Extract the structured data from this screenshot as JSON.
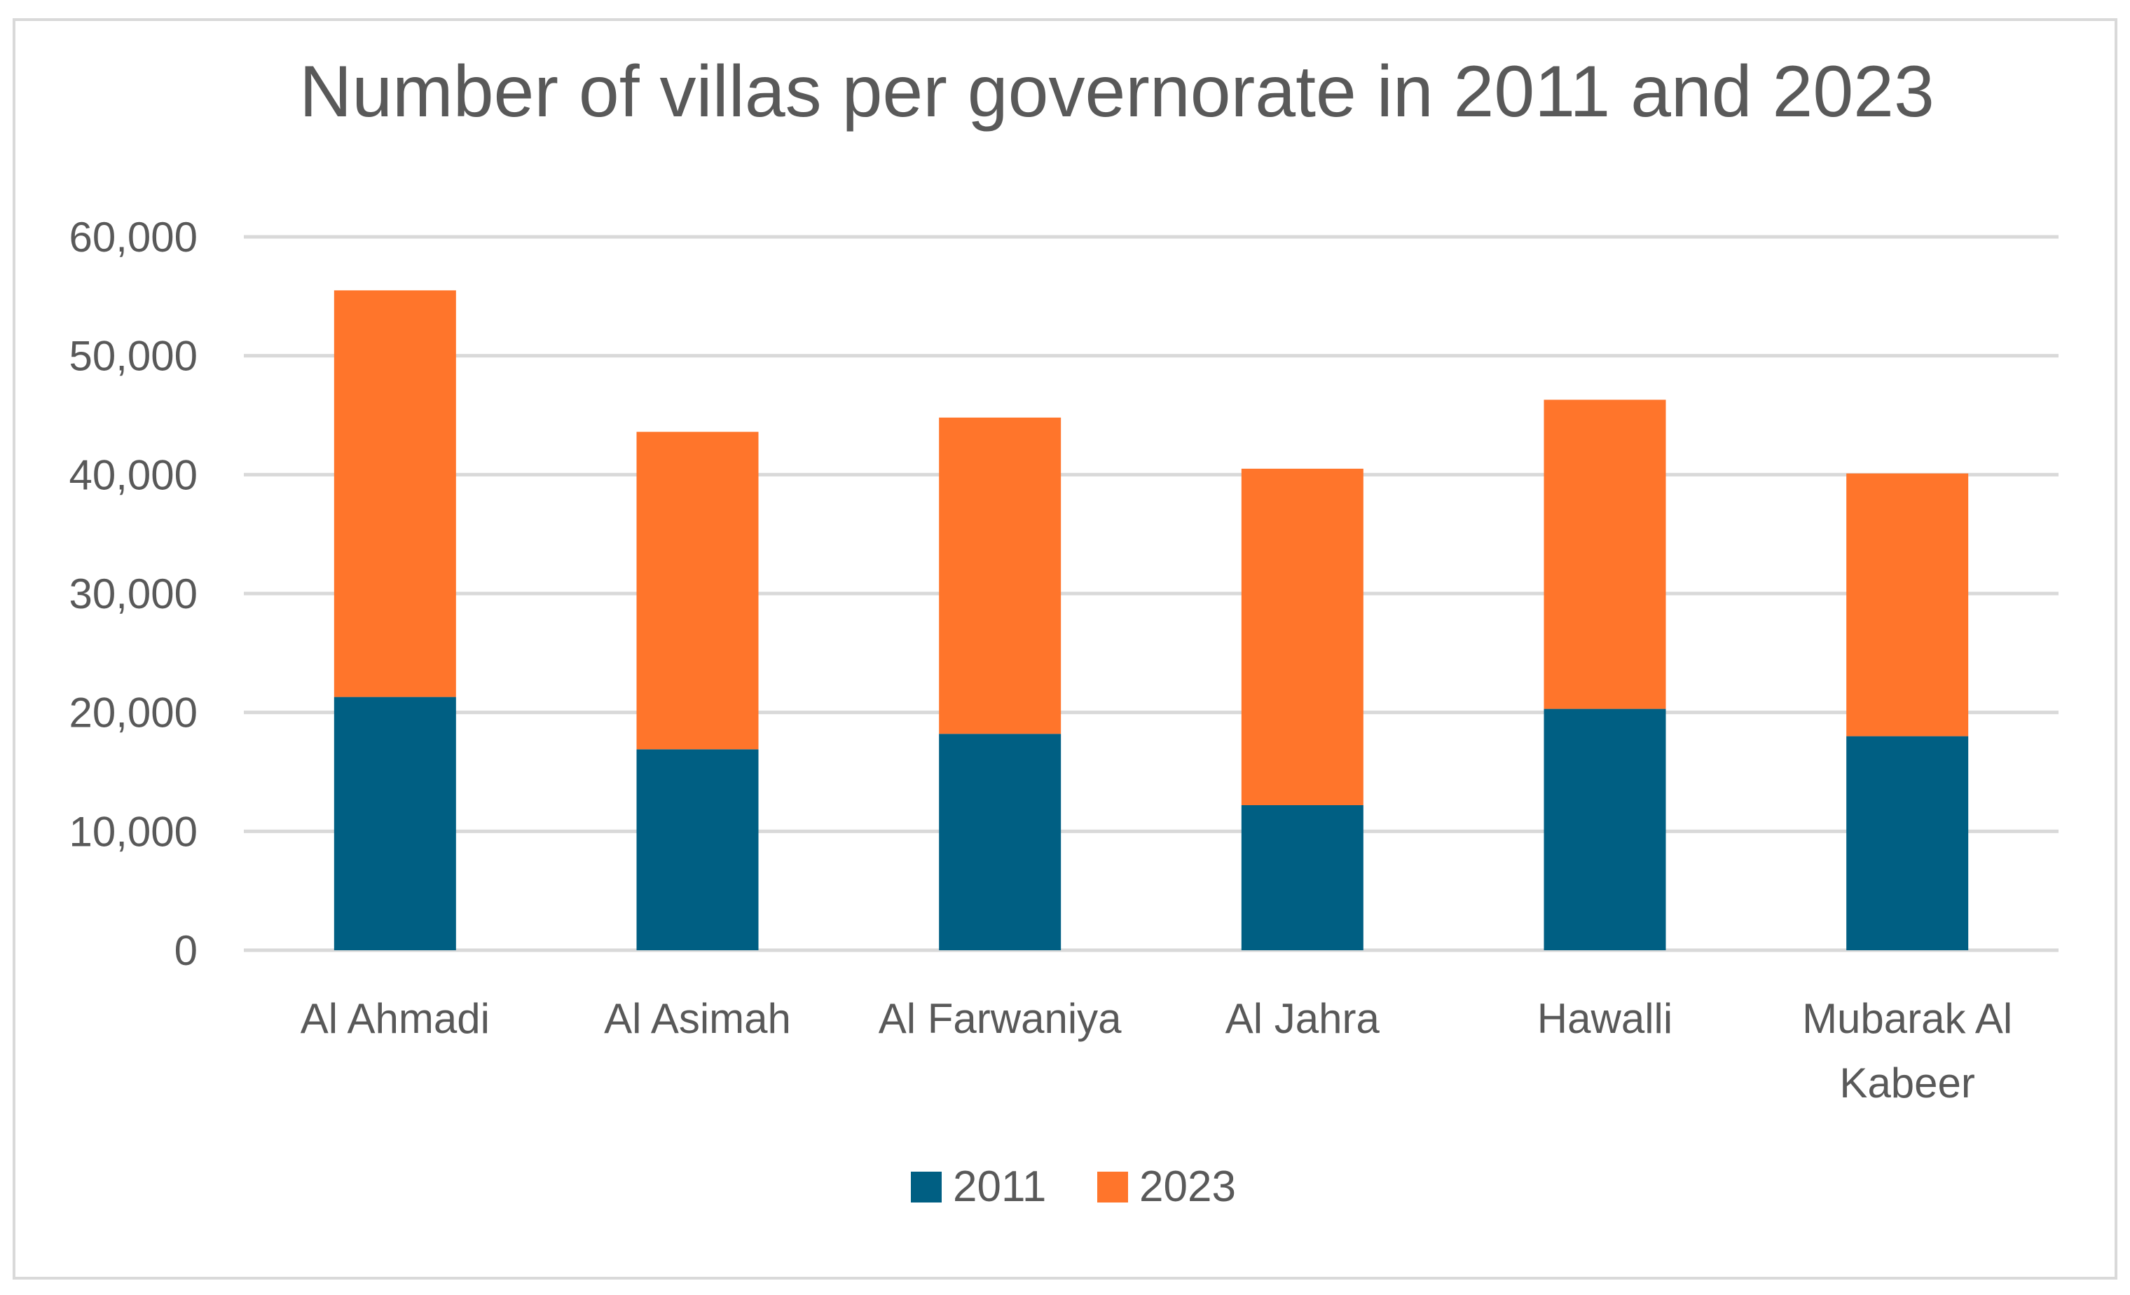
{
  "chart_data": {
    "type": "bar",
    "stacked": true,
    "title": "Number of villas per governorate in 2011 and 2023",
    "categories": [
      [
        "Al Ahmadi"
      ],
      [
        "Al Asimah"
      ],
      [
        "Al Farwaniya"
      ],
      [
        "Al Jahra"
      ],
      [
        "Hawalli"
      ],
      [
        "Mubarak Al",
        "Kabeer"
      ]
    ],
    "series": [
      {
        "name": "2011",
        "color": "#005f83",
        "values": [
          21300,
          16900,
          18200,
          12200,
          20300,
          18000
        ]
      },
      {
        "name": "2023",
        "color": "#ff752b",
        "values": [
          34200,
          26700,
          26600,
          28300,
          26000,
          22100
        ]
      }
    ],
    "ylim": [
      0,
      60000
    ],
    "yticks": [
      0,
      10000,
      20000,
      30000,
      40000,
      50000,
      60000
    ],
    "ytick_labels": [
      "0",
      "10,000",
      "20,000",
      "30,000",
      "40,000",
      "50,000",
      "60,000"
    ],
    "xlabel": "",
    "ylabel": "",
    "grid": true,
    "legend_position": "bottom"
  }
}
